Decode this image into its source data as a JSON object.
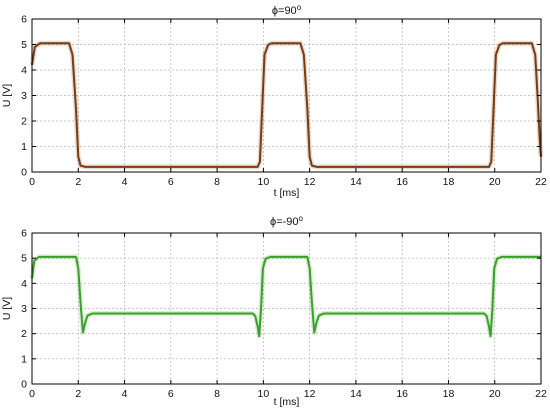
{
  "chart_data": [
    {
      "type": "line",
      "title": "ϕ=90°",
      "title_main": "ϕ=90",
      "title_sup": "o",
      "xlabel": "t [ms]",
      "ylabel": "U [V]",
      "xlim": [
        0,
        22
      ],
      "ylim": [
        0,
        6
      ],
      "xticks": [
        "0",
        "2",
        "4",
        "6",
        "8",
        "10",
        "12",
        "14",
        "16",
        "18",
        "20",
        "22"
      ],
      "yticks": [
        "0",
        "1",
        "2",
        "3",
        "4",
        "5",
        "6"
      ],
      "grid": true,
      "series": [
        {
          "color": "#7a3b10",
          "x": [
            0,
            0.12,
            0.35,
            1.6,
            1.75,
            1.9,
            2.0,
            2.1,
            2.3,
            9.75,
            9.85,
            9.95,
            10.05,
            10.2,
            10.35,
            11.6,
            11.75,
            11.9,
            12.0,
            12.1,
            12.3,
            19.75,
            19.85,
            19.95,
            20.05,
            20.2,
            20.35,
            21.6,
            21.75,
            21.85,
            21.95,
            22.0
          ],
          "y": [
            4.2,
            4.9,
            5.05,
            5.05,
            4.6,
            2.5,
            0.6,
            0.25,
            0.2,
            0.2,
            0.4,
            2.5,
            4.6,
            4.98,
            5.05,
            5.05,
            4.6,
            2.5,
            0.6,
            0.25,
            0.2,
            0.2,
            0.4,
            2.5,
            4.6,
            4.98,
            5.05,
            5.05,
            4.6,
            3.0,
            1.2,
            0.6
          ]
        }
      ]
    },
    {
      "type": "line",
      "title": "ϕ=-90°",
      "title_main": "ϕ=-90",
      "title_sup": "o",
      "xlabel": "t [ms]",
      "ylabel": "U [V]",
      "xlim": [
        0,
        22
      ],
      "ylim": [
        0,
        6
      ],
      "xticks": [
        "0",
        "2",
        "4",
        "6",
        "8",
        "10",
        "12",
        "14",
        "16",
        "18",
        "20",
        "22"
      ],
      "yticks": [
        "0",
        "1",
        "2",
        "3",
        "4",
        "5",
        "6"
      ],
      "grid": true,
      "series": [
        {
          "color": "#3aa028",
          "x": [
            0,
            0.1,
            0.3,
            1.9,
            2.0,
            2.1,
            2.2,
            2.3,
            2.4,
            2.6,
            9.55,
            9.65,
            9.75,
            9.82,
            9.9,
            9.98,
            10.1,
            10.3,
            11.9,
            12.0,
            12.1,
            12.2,
            12.3,
            12.4,
            12.6,
            19.55,
            19.65,
            19.75,
            19.82,
            19.9,
            19.98,
            20.1,
            20.3,
            22.0
          ],
          "y": [
            4.2,
            4.9,
            5.05,
            5.05,
            4.6,
            3.2,
            2.05,
            2.45,
            2.72,
            2.8,
            2.8,
            2.7,
            2.3,
            1.9,
            3.0,
            4.6,
            4.98,
            5.05,
            5.05,
            4.6,
            3.2,
            2.05,
            2.45,
            2.72,
            2.8,
            2.8,
            2.7,
            2.3,
            1.9,
            3.0,
            4.6,
            4.98,
            5.05,
            5.05
          ]
        }
      ]
    }
  ]
}
